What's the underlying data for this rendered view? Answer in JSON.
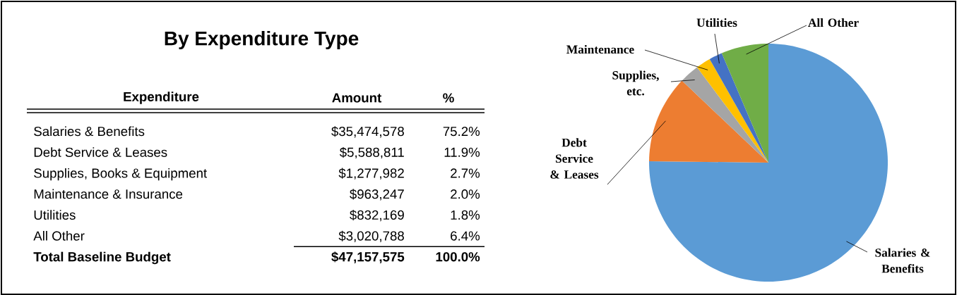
{
  "chart_data": [
    {
      "type": "other",
      "title": "By Expenditure Type",
      "annotations": [
        "Expenditure",
        "Amount",
        "%",
        "Salaries & Benefits",
        "$35,474,578",
        "75.2%",
        "Debt Service & Leases",
        "$5,588,811",
        "11.9%",
        "Supplies, Books & Equipment",
        "$1,277,982",
        "2.7%",
        "Maintenance & Insurance",
        "$963,247",
        "2.0%",
        "Utilities",
        "$832,169",
        "1.8%",
        "All Other",
        "$3,020,788",
        "6.4%",
        "Total Baseline Budget",
        "$47,157,575",
        "100.0%"
      ]
    },
    {
      "type": "pie",
      "categories": [
        "Salaries & Benefits",
        "Debt Service & Leases",
        "Supplies, etc.",
        "Maintenance",
        "Utilities",
        "All Other"
      ],
      "values": [
        75.2,
        11.9,
        2.7,
        2.0,
        1.8,
        6.4
      ],
      "colors": [
        "#5b9bd5",
        "#ed7d31",
        "#a5a5a5",
        "#ffc000",
        "#4472c4",
        "#70ad47"
      ]
    }
  ]
}
